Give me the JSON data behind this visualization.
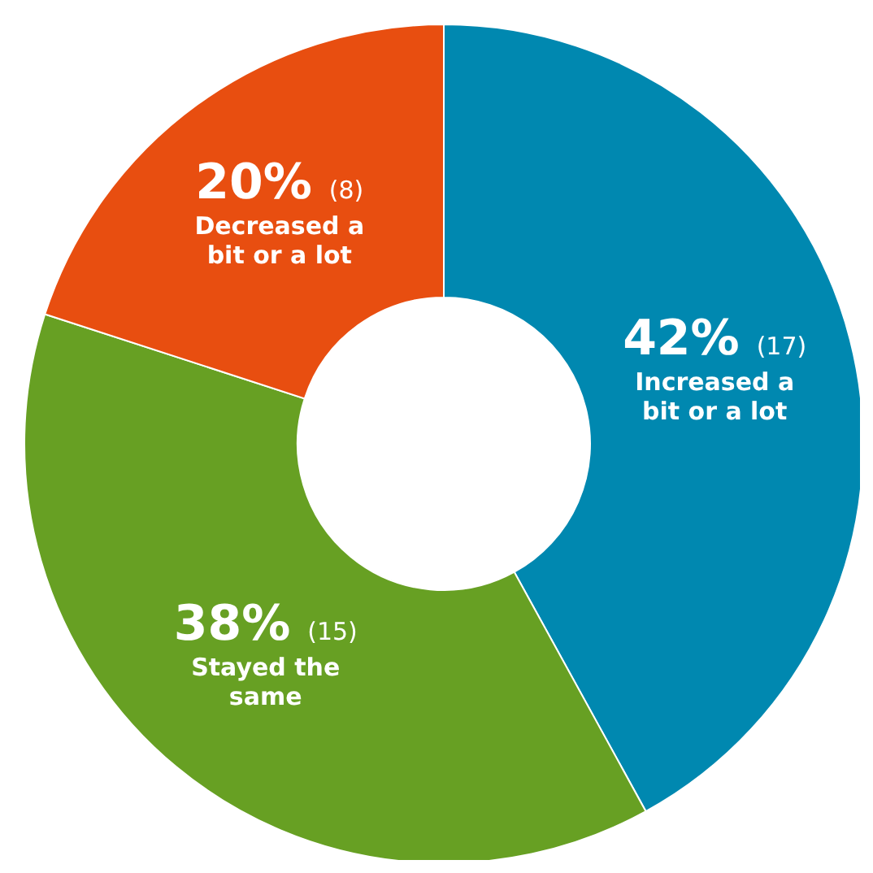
{
  "chart_data": {
    "type": "donut",
    "categories": [
      "Increased a bit or a lot",
      "Stayed the same",
      "Decreased a bit or a lot"
    ],
    "values": [
      42,
      38,
      20
    ],
    "colors": [
      "#0088b0",
      "#67a023",
      "#e84e10"
    ],
    "value_labels": [
      "42% (17)",
      "38% (15)",
      "20% (8)"
    ],
    "legend": false
  }
}
